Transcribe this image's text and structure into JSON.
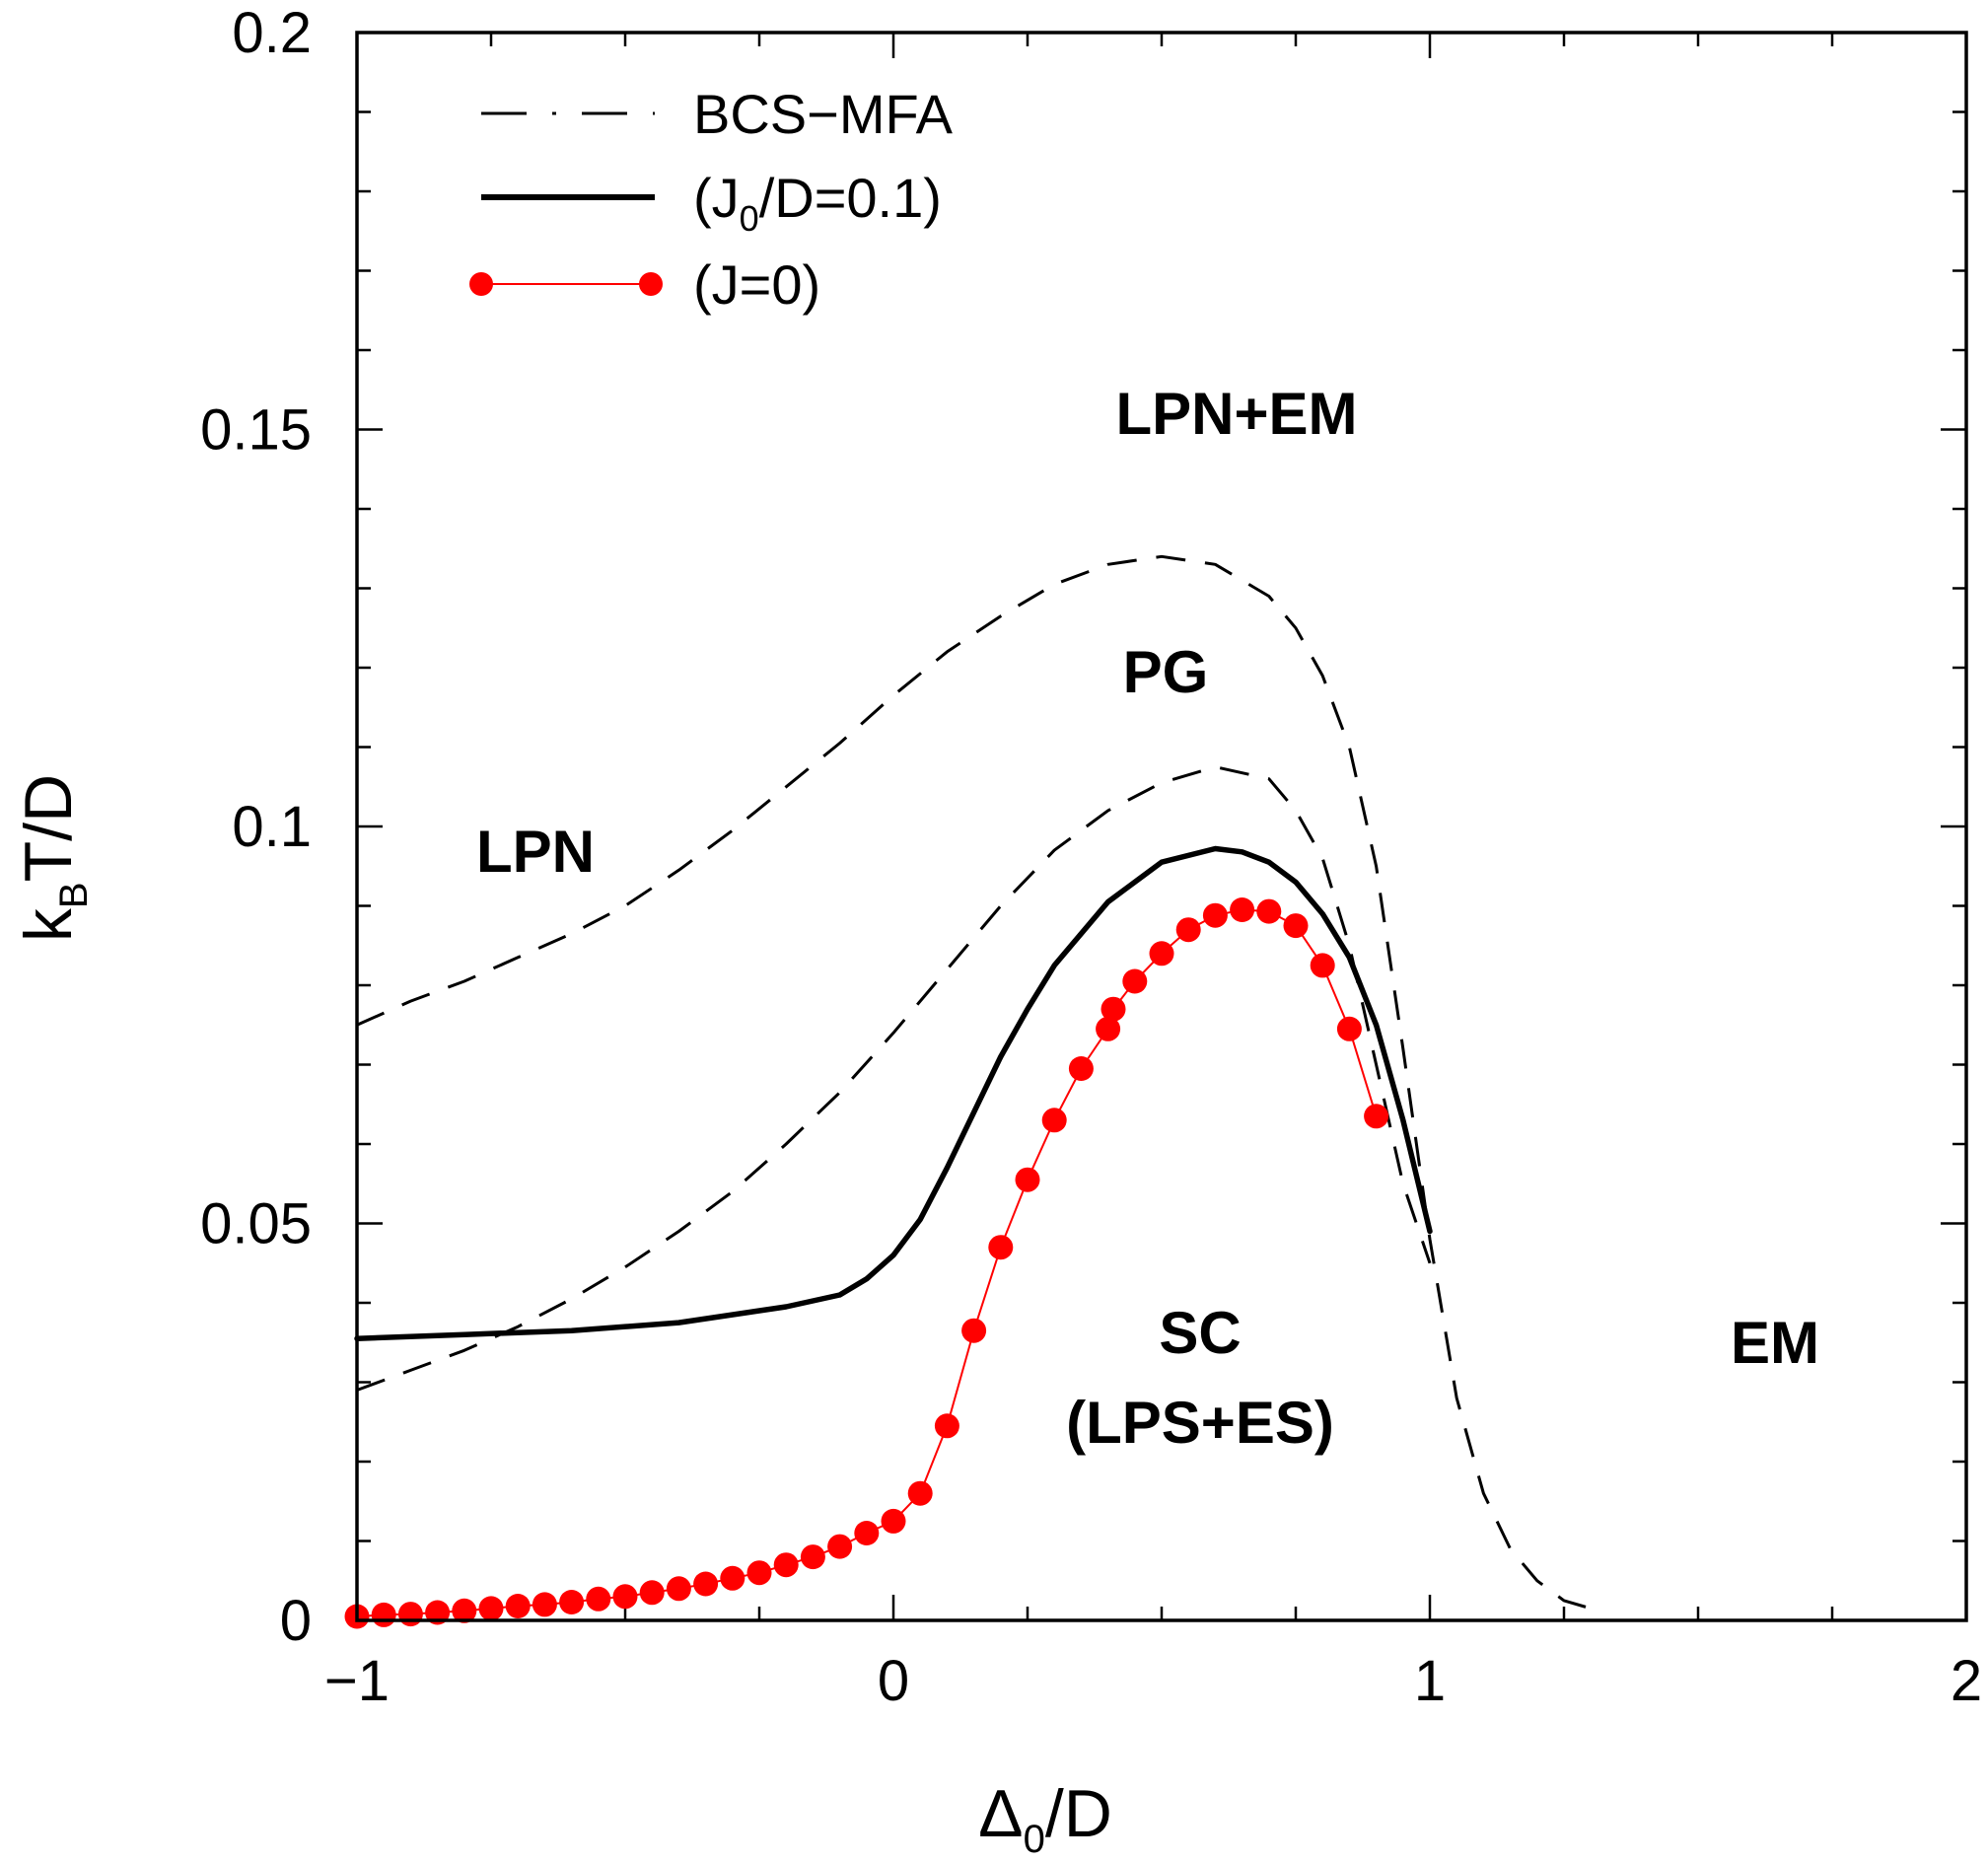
{
  "chart_data": {
    "type": "line",
    "xlabel": "Δ0/D",
    "xlabel_parts": {
      "main": "Δ",
      "sub": "0",
      "rest": "/D"
    },
    "ylabel": "kBT/D",
    "ylabel_parts": {
      "pre": "k",
      "sub": "B",
      "rest": "T/D"
    },
    "xlim": [
      -1,
      2
    ],
    "ylim": [
      0,
      0.2
    ],
    "x_ticks": [
      -1,
      0,
      1,
      2
    ],
    "x_tick_labels": [
      "−1",
      "0",
      "1",
      "2"
    ],
    "y_ticks": [
      0,
      0.05,
      0.1,
      0.15,
      0.2
    ],
    "y_tick_labels": [
      "0",
      "0.05",
      "0.1",
      "0.15",
      "0.2"
    ],
    "legend_position": "top-left",
    "legend": {
      "bcs": "BCS−MFA",
      "j0": {
        "pre": "(J",
        "sub": "0",
        "rest": "/D=0.1)"
      },
      "j": "(J=0)"
    },
    "region_labels": {
      "lpn_em": "LPN+EM",
      "pg": "PG",
      "lpn": "LPN",
      "sc": "SC",
      "sc_sub": "(LPS+ES)",
      "em": "EM"
    },
    "series": [
      {
        "name": "BCS−MFA",
        "part": "upper",
        "style": "dashed",
        "color": "#000000",
        "x": [
          -1.0,
          -0.9,
          -0.8,
          -0.7,
          -0.6,
          -0.5,
          -0.4,
          -0.3,
          -0.2,
          -0.1,
          0.0,
          0.1,
          0.2,
          0.3,
          0.4,
          0.5,
          0.6,
          0.7,
          0.75,
          0.8,
          0.85,
          0.9,
          0.95,
          1.0,
          1.05,
          1.1,
          1.15,
          1.2,
          1.25,
          1.3
        ],
        "y": [
          0.075,
          0.078,
          0.0805,
          0.0835,
          0.0865,
          0.09,
          0.0945,
          0.0995,
          0.105,
          0.1105,
          0.1165,
          0.122,
          0.1265,
          0.1305,
          0.133,
          0.134,
          0.133,
          0.129,
          0.125,
          0.119,
          0.11,
          0.095,
          0.072,
          0.048,
          0.028,
          0.016,
          0.009,
          0.005,
          0.0025,
          0.0015
        ]
      },
      {
        "name": "BCS−MFA",
        "part": "lower",
        "style": "dashed",
        "color": "#000000",
        "x": [
          -1.0,
          -0.9,
          -0.8,
          -0.7,
          -0.6,
          -0.5,
          -0.4,
          -0.3,
          -0.2,
          -0.1,
          0.0,
          0.1,
          0.2,
          0.3,
          0.4,
          0.5,
          0.6,
          0.7,
          0.75,
          0.8,
          0.85,
          0.9,
          0.95,
          1.0
        ],
        "y": [
          0.029,
          0.0315,
          0.034,
          0.037,
          0.0405,
          0.0445,
          0.049,
          0.054,
          0.06,
          0.0665,
          0.074,
          0.082,
          0.09,
          0.097,
          0.102,
          0.1055,
          0.1075,
          0.106,
          0.102,
          0.096,
          0.085,
          0.07,
          0.055,
          0.045
        ]
      },
      {
        "name": "(J0/D=0.1)",
        "style": "solid",
        "color": "#000000",
        "x": [
          -1.0,
          -0.8,
          -0.6,
          -0.4,
          -0.2,
          -0.1,
          -0.05,
          0.0,
          0.05,
          0.1,
          0.15,
          0.2,
          0.25,
          0.3,
          0.4,
          0.5,
          0.6,
          0.65,
          0.7,
          0.75,
          0.8,
          0.85,
          0.9,
          0.95,
          1.0
        ],
        "y": [
          0.0355,
          0.036,
          0.0365,
          0.0375,
          0.0395,
          0.041,
          0.043,
          0.046,
          0.0505,
          0.057,
          0.064,
          0.071,
          0.077,
          0.0825,
          0.0905,
          0.0955,
          0.0972,
          0.0968,
          0.0955,
          0.093,
          0.089,
          0.0835,
          0.075,
          0.063,
          0.049
        ]
      },
      {
        "name": "(J=0)",
        "style": "solid-markers",
        "color": "#ff0000",
        "x": [
          -1.0,
          -0.95,
          -0.9,
          -0.85,
          -0.8,
          -0.75,
          -0.7,
          -0.65,
          -0.6,
          -0.55,
          -0.5,
          -0.45,
          -0.4,
          -0.35,
          -0.3,
          -0.25,
          -0.2,
          -0.15,
          -0.1,
          -0.05,
          0.0,
          0.05,
          0.1,
          0.15,
          0.2,
          0.25,
          0.3,
          0.35,
          0.4,
          0.41,
          0.45,
          0.5,
          0.55,
          0.6,
          0.65,
          0.7,
          0.75,
          0.8,
          0.85,
          0.9
        ],
        "y": [
          0.0005,
          0.0007,
          0.0008,
          0.001,
          0.0012,
          0.0015,
          0.0018,
          0.002,
          0.0023,
          0.0027,
          0.003,
          0.0035,
          0.004,
          0.0046,
          0.0053,
          0.006,
          0.007,
          0.008,
          0.0093,
          0.011,
          0.0125,
          0.016,
          0.0245,
          0.0365,
          0.047,
          0.0555,
          0.063,
          0.0695,
          0.0745,
          0.077,
          0.0805,
          0.084,
          0.087,
          0.0888,
          0.0895,
          0.0893,
          0.0875,
          0.0825,
          0.0745,
          0.0635
        ]
      }
    ]
  }
}
